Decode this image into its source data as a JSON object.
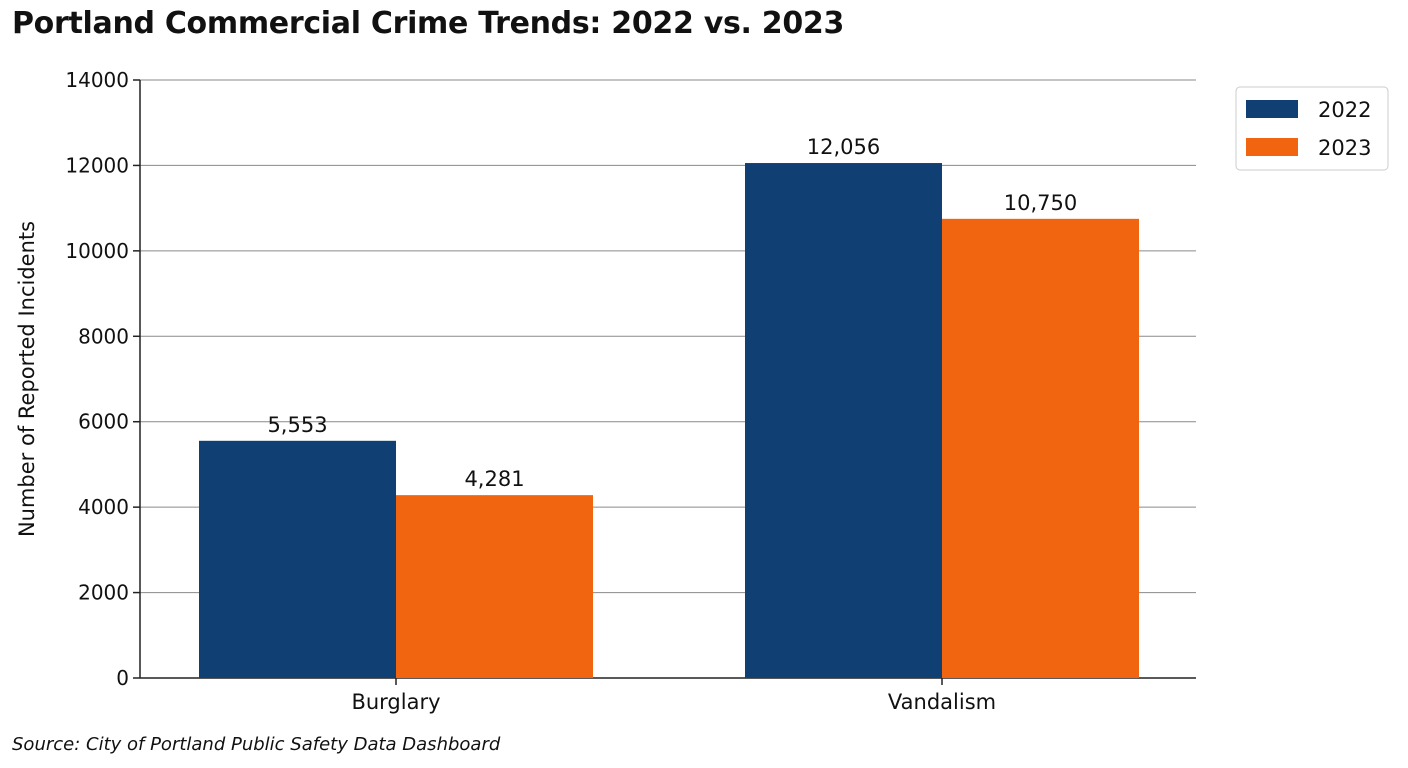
{
  "chart_data": {
    "type": "bar",
    "title": "Portland Commercial Crime Trends: 2022 vs. 2023",
    "xlabel": "",
    "ylabel": "Number of Reported Incidents",
    "categories": [
      "Burglary",
      "Vandalism"
    ],
    "series": [
      {
        "name": "2022",
        "values": [
          5553,
          12056
        ],
        "labels": [
          "5,553",
          "12,056"
        ],
        "color": "#0f3f73"
      },
      {
        "name": "2023",
        "values": [
          4281,
          10750
        ],
        "labels": [
          "4,281",
          "10,750"
        ],
        "color": "#f26510"
      }
    ],
    "ylim": [
      0,
      14000
    ],
    "yticks": [
      0,
      2000,
      4000,
      6000,
      8000,
      10000,
      12000,
      14000
    ],
    "grid": "horizontal",
    "legend": "top-right",
    "source": "Source: City of Portland Public Safety Data Dashboard"
  }
}
